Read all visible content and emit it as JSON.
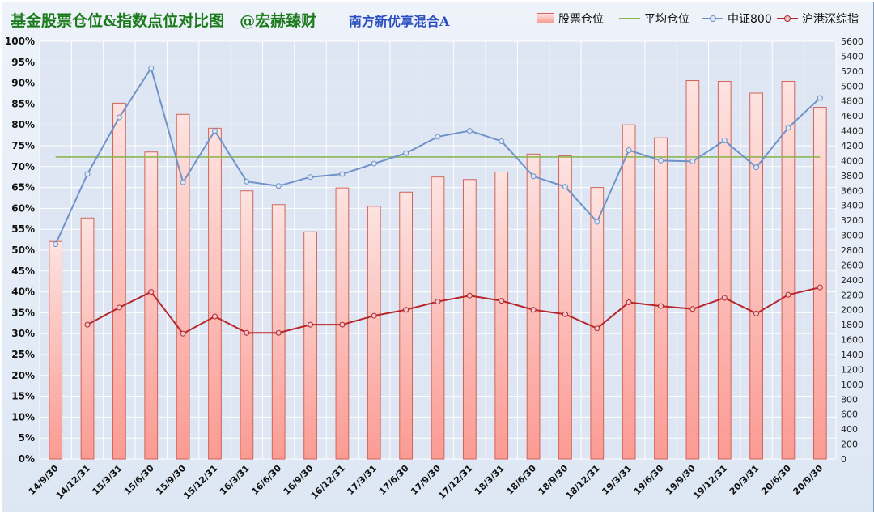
{
  "header": {
    "title": "基金股票仓位&指数点位对比图　@宏赫臻财",
    "fund_name": "南方新优享混合A"
  },
  "legend": {
    "position_label": "股票仓位",
    "avg_label": "平均仓位",
    "csi800_label": "中证800",
    "index_label": "沪港深综指"
  },
  "colors": {
    "bar_fill_top": "#fde3e0",
    "bar_fill_bottom": "#fb9b93",
    "bar_stroke": "#d0645c",
    "avg_line": "#8db552",
    "csi800_line": "#6f93c8",
    "index_line": "#b7262b"
  },
  "chart_data": {
    "type": "bar",
    "categories": [
      "14/9/30",
      "14/12/31",
      "15/3/31",
      "15/6/30",
      "15/9/30",
      "15/12/31",
      "16/3/31",
      "16/6/30",
      "16/9/30",
      "16/12/31",
      "17/3/31",
      "17/6/30",
      "17/9/30",
      "17/12/31",
      "18/3/31",
      "18/6/30",
      "18/9/30",
      "18/12/31",
      "19/3/31",
      "19/6/30",
      "19/9/30",
      "19/12/31",
      "20/3/31",
      "20/6/30",
      "20/9/30"
    ],
    "left_axis": {
      "ylim": [
        0,
        100
      ],
      "tick_step": 5,
      "unit": "%"
    },
    "right_axis": {
      "ylim": [
        0,
        5600
      ],
      "tick_step": 200
    },
    "series": [
      {
        "name": "股票仓位",
        "type": "bar",
        "axis": "left",
        "values": [
          52.1,
          57.7,
          85.2,
          73.5,
          82.5,
          79.2,
          64.2,
          60.9,
          54.4,
          64.9,
          60.5,
          63.9,
          67.5,
          66.9,
          68.7,
          73.0,
          72.6,
          65.0,
          80.0,
          76.9,
          90.6,
          90.4,
          87.6,
          90.4,
          84.2
        ]
      },
      {
        "name": "平均仓位",
        "type": "line",
        "axis": "left",
        "value": 72.3
      },
      {
        "name": "中证800",
        "type": "line",
        "axis": "right",
        "values": [
          2880,
          3820,
          4580,
          5240,
          3710,
          4400,
          3720,
          3660,
          3780,
          3820,
          3960,
          4100,
          4320,
          4400,
          4260,
          3790,
          3650,
          3180,
          4140,
          4000,
          3990,
          4270,
          3910,
          4440,
          4840
        ]
      },
      {
        "name": "沪港深综指",
        "type": "line",
        "axis": "right",
        "values": [
          null,
          1800,
          2030,
          2240,
          1680,
          1910,
          1690,
          1690,
          1800,
          1800,
          1920,
          2000,
          2110,
          2190,
          2120,
          2000,
          1940,
          1750,
          2100,
          2050,
          2010,
          2160,
          1950,
          2200,
          2300
        ]
      }
    ]
  }
}
